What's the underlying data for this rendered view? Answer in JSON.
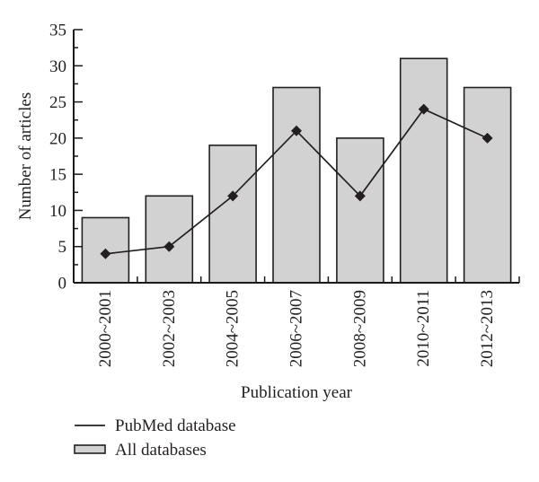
{
  "figure": {
    "background": "#ffffff"
  },
  "chart_data": {
    "type": "bar",
    "subtype": "bar-with-line-overlay",
    "title": "",
    "categories": [
      "2000~2001",
      "2002~2003",
      "2004~2005",
      "2006~2007",
      "2008~2009",
      "2010~2011",
      "2012~2013"
    ],
    "series": [
      {
        "name": "All databases",
        "render": "bar",
        "values": [
          9,
          12,
          19,
          27,
          20,
          31,
          27
        ],
        "fill": "#d2d2d2",
        "stroke": "#231f20"
      },
      {
        "name": "PubMed database",
        "render": "line",
        "values": [
          4,
          5,
          12,
          21,
          12,
          24,
          20
        ],
        "color": "#231f20",
        "marker": "diamond"
      }
    ],
    "xlabel": "Publication year",
    "ylabel": "Number of articles",
    "ylim": [
      0,
      35
    ],
    "ytick_step": 5,
    "yticks": [
      0,
      5,
      10,
      15,
      20,
      25,
      30,
      35
    ],
    "yminor_midpoints": [
      2.5,
      7.5,
      12.5,
      17.5,
      22.5,
      27.5,
      32.5
    ],
    "grid": false,
    "legend_position": "below-left",
    "legend": [
      {
        "label": "PubMed database",
        "swatch": "line"
      },
      {
        "label": "All databases",
        "swatch": "bar"
      }
    ]
  },
  "colors": {
    "axis": "#1a1a1a",
    "text": "#231f20",
    "bar_fill": "#d2d2d2",
    "bar_stroke": "#231f20",
    "line": "#231f20"
  }
}
